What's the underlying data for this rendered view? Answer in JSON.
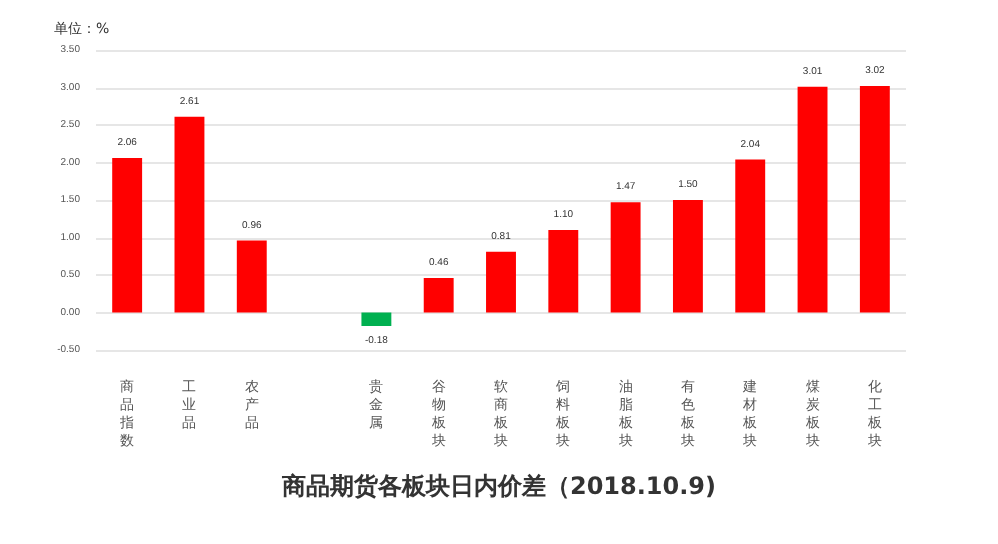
{
  "chart_data": {
    "type": "bar",
    "title": "商品期货各板块日内价差（2018.10.9)",
    "ylabel": "单位：%",
    "categories": [
      "商品指数",
      "工业品",
      "农产品",
      null,
      "贵金属",
      "谷物板块",
      "软商板块",
      "饲料板块",
      "油脂板块",
      "有色板块",
      "建材板块",
      "煤炭板块",
      "化工板块"
    ],
    "values": [
      2.06,
      2.61,
      0.96,
      null,
      -0.18,
      0.46,
      0.81,
      1.1,
      1.47,
      1.5,
      2.04,
      3.01,
      3.02
    ],
    "colors": [
      "#ff0000",
      "#ff0000",
      "#ff0000",
      "#ff0000",
      "#00b050",
      "#ff0000",
      "#ff0000",
      "#ff0000",
      "#ff0000",
      "#ff0000",
      "#ff0000",
      "#ff0000",
      "#ff0000"
    ],
    "value_labels": [
      "2.06",
      "2.61",
      "0.96",
      null,
      "-0.18",
      "0.46",
      "0.81",
      "1.10",
      "1.47",
      "1.50",
      "2.04",
      "3.01",
      "3.02"
    ],
    "ylim": [
      -0.5,
      3.5
    ],
    "yticks": [
      {
        "value": -0.5,
        "label": "-0.50"
      },
      {
        "value": 0,
        "label": "0.00"
      },
      {
        "value": 0.5,
        "label": "0.50"
      },
      {
        "value": 1,
        "label": "1.00"
      },
      {
        "value": 1.5,
        "label": "1.50"
      },
      {
        "value": 2,
        "label": "2.00"
      },
      {
        "value": 2.5,
        "label": "2.50"
      },
      {
        "value": 3,
        "label": "3.00"
      },
      {
        "value": 3.5,
        "label": "3.50"
      }
    ],
    "grid": "y"
  }
}
